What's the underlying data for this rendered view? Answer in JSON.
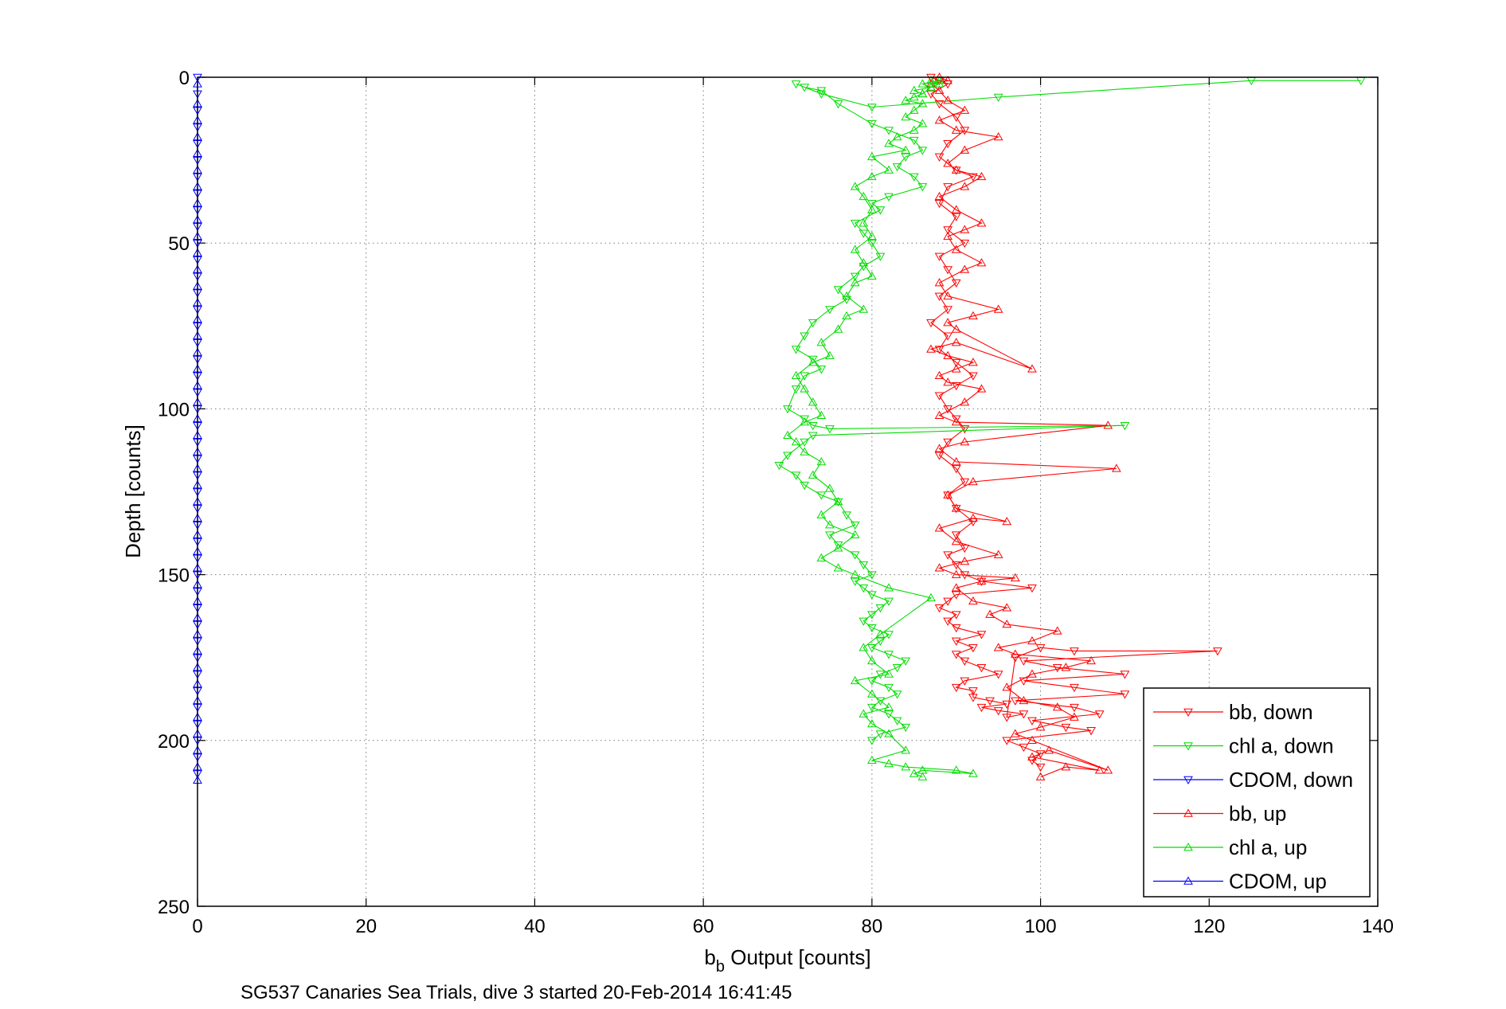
{
  "chart_data": {
    "type": "scatter",
    "title": "",
    "xlabel_main": "b",
    "xlabel_sub": "b",
    "xlabel_rest": " Output [counts]",
    "ylabel": "Depth [counts]",
    "caption": "SG537 Canaries Sea Trials, dive 3 started 20-Feb-2014 16:41:45",
    "xlim": [
      0,
      140
    ],
    "ylim": [
      0,
      250
    ],
    "y_reversed": true,
    "grid": true,
    "xticks": [
      "0",
      "20",
      "40",
      "60",
      "80",
      "100",
      "120",
      "140"
    ],
    "yticks": [
      "0",
      "50",
      "100",
      "150",
      "200",
      "250"
    ],
    "legend_position": "bottom-right",
    "colors": {
      "bb": "#ff0000",
      "chl": "#00dd00",
      "cdom": "#0000ff"
    },
    "series": [
      {
        "name": "bb, down",
        "color": "#ff0000",
        "marker": "triangle-down",
        "x": [
          87,
          88,
          89,
          87,
          88,
          90,
          91,
          89,
          88,
          90,
          92,
          89,
          88,
          90,
          89,
          91,
          88,
          89,
          90,
          88,
          89,
          87,
          89,
          88,
          90,
          92,
          90,
          88,
          89,
          90,
          91,
          89,
          88,
          90,
          91,
          89,
          90,
          92,
          90,
          91,
          89,
          90,
          91,
          93,
          99,
          90,
          89,
          88,
          90,
          89,
          90,
          93,
          90,
          92,
          90,
          91,
          93,
          95,
          91,
          90,
          92,
          92,
          94,
          96,
          93,
          95,
          98,
          96,
          97,
          100,
          104,
          121,
          98,
          102,
          110,
          98,
          104,
          110,
          97,
          104,
          107,
          99,
          103,
          106,
          96,
          98,
          100,
          99,
          100
        ],
        "y": [
          0,
          1,
          2,
          5,
          8,
          12,
          16,
          20,
          24,
          28,
          30,
          33,
          38,
          42,
          46,
          50,
          54,
          58,
          62,
          66,
          70,
          74,
          78,
          82,
          86,
          90,
          93,
          96,
          100,
          103,
          106,
          110,
          114,
          118,
          122,
          126,
          130,
          134,
          138,
          142,
          144,
          147,
          150,
          152,
          154,
          156,
          158,
          160,
          162,
          164,
          166,
          168,
          170,
          172,
          174,
          176,
          178,
          180,
          182,
          184,
          185,
          187,
          188,
          189,
          190,
          191,
          192,
          193,
          175,
          172,
          173,
          173,
          176,
          178,
          180,
          182,
          184,
          186,
          188,
          190,
          192,
          194,
          196,
          197,
          200,
          202,
          204,
          206,
          208
        ]
      },
      {
        "name": "chl a, down",
        "color": "#00dd00",
        "marker": "triangle-down",
        "x": [
          138,
          125,
          95,
          80,
          74,
          71,
          72,
          74,
          76,
          80,
          82,
          85,
          86,
          84,
          83,
          85,
          86,
          82,
          80,
          81,
          78,
          79,
          80,
          81,
          79,
          78,
          76,
          77,
          75,
          73,
          72,
          71,
          73,
          74,
          72,
          71,
          70,
          72,
          73,
          75,
          110,
          73,
          72,
          70,
          69,
          71,
          72,
          74,
          76,
          77,
          78,
          75,
          76,
          78,
          79,
          80,
          78,
          79,
          80,
          82,
          81,
          80,
          79,
          80,
          82,
          81,
          80,
          82,
          84,
          83,
          81,
          80,
          82,
          83,
          81,
          80,
          82,
          83,
          84,
          81,
          80
        ],
        "y": [
          1,
          1,
          6,
          9,
          5,
          2,
          3,
          4,
          8,
          14,
          16,
          19,
          22,
          24,
          27,
          30,
          33,
          36,
          38,
          40,
          44,
          47,
          50,
          54,
          57,
          60,
          64,
          67,
          70,
          74,
          78,
          82,
          85,
          88,
          90,
          94,
          100,
          103,
          105,
          106,
          105,
          108,
          110,
          114,
          117,
          120,
          123,
          126,
          128,
          132,
          135,
          138,
          141,
          144,
          147,
          150,
          152,
          154,
          156,
          158,
          160,
          162,
          164,
          166,
          168,
          170,
          172,
          174,
          176,
          178,
          180,
          182,
          184,
          186,
          188,
          190,
          192,
          194,
          196,
          198,
          200
        ]
      },
      {
        "name": "CDOM, down",
        "color": "#0000ff",
        "marker": "triangle-down",
        "x": [
          0,
          0,
          0,
          0,
          0,
          0,
          0,
          0,
          0,
          0,
          0,
          0,
          0,
          0,
          0,
          0,
          0,
          0,
          0,
          0,
          0,
          0,
          0,
          0,
          0,
          0,
          0,
          0,
          0,
          0,
          0,
          0,
          0,
          0,
          0,
          0,
          0,
          0,
          0,
          0,
          0,
          0,
          0
        ],
        "y": [
          0,
          5,
          10,
          15,
          20,
          25,
          30,
          35,
          40,
          45,
          50,
          55,
          60,
          65,
          70,
          75,
          80,
          85,
          90,
          95,
          100,
          105,
          110,
          115,
          120,
          125,
          130,
          135,
          140,
          145,
          150,
          155,
          160,
          165,
          170,
          175,
          180,
          185,
          190,
          195,
          200,
          205,
          210
        ]
      },
      {
        "name": "bb, up",
        "color": "#ff0000",
        "marker": "triangle-up",
        "x": [
          100,
          103,
          107,
          99,
          101,
          108,
          99,
          97,
          100,
          104,
          102,
          98,
          96,
          99,
          103,
          106,
          97,
          95,
          99,
          102,
          96,
          94,
          96,
          92,
          90,
          93,
          97,
          90,
          88,
          91,
          95,
          90,
          88,
          92,
          96,
          90,
          89,
          92,
          109,
          90,
          88,
          91,
          108,
          90,
          88,
          91,
          93,
          89,
          88,
          90,
          92,
          89,
          87,
          90,
          99,
          90,
          89,
          92,
          95,
          89,
          88,
          91,
          93,
          90,
          89,
          91,
          93,
          90,
          88,
          91,
          93,
          90,
          89,
          91,
          95,
          90,
          88,
          91,
          89,
          88,
          87,
          89,
          88
        ],
        "y": [
          211,
          208,
          209,
          205,
          203,
          209,
          200,
          198,
          196,
          193,
          190,
          188,
          184,
          180,
          178,
          176,
          174,
          172,
          170,
          167,
          165,
          162,
          160,
          158,
          154,
          152,
          151,
          150,
          148,
          146,
          144,
          140,
          136,
          133,
          134,
          130,
          126,
          122,
          118,
          116,
          112,
          110,
          105,
          104,
          102,
          98,
          94,
          92,
          90,
          88,
          86,
          84,
          82,
          80,
          88,
          76,
          74,
          72,
          70,
          66,
          62,
          58,
          56,
          52,
          48,
          46,
          44,
          40,
          36,
          33,
          30,
          28,
          26,
          22,
          18,
          16,
          13,
          10,
          7,
          4,
          2,
          1,
          0
        ]
      },
      {
        "name": "chl a, up",
        "color": "#00dd00",
        "marker": "triangle-up",
        "x": [
          86,
          85,
          86,
          92,
          90,
          84,
          82,
          80,
          84,
          82,
          80,
          79,
          82,
          80,
          78,
          82,
          80,
          79,
          81,
          87,
          82,
          78,
          76,
          74,
          76,
          78,
          75,
          74,
          76,
          75,
          73,
          74,
          72,
          71,
          70,
          72,
          74,
          73,
          72,
          71,
          73,
          75,
          74,
          76,
          77,
          79,
          77,
          78,
          80,
          79,
          78,
          80,
          79,
          80,
          79,
          78,
          80,
          82,
          80,
          84,
          82,
          83,
          85,
          86,
          84,
          85,
          86,
          84,
          85,
          86,
          85,
          87,
          86,
          88,
          86,
          87,
          88,
          87
        ],
        "y": [
          211,
          210,
          209,
          210,
          209,
          208,
          207,
          206,
          203,
          198,
          195,
          192,
          190,
          186,
          182,
          180,
          176,
          172,
          168,
          157,
          154,
          150,
          148,
          145,
          142,
          138,
          135,
          132,
          128,
          124,
          120,
          116,
          113,
          110,
          108,
          104,
          102,
          98,
          94,
          90,
          86,
          84,
          80,
          76,
          72,
          70,
          66,
          62,
          60,
          56,
          52,
          48,
          44,
          40,
          36,
          33,
          30,
          28,
          24,
          22,
          20,
          18,
          16,
          14,
          12,
          10,
          8,
          7,
          6,
          5,
          4,
          3,
          2,
          1,
          5,
          3,
          2,
          1
        ]
      },
      {
        "name": "CDOM, up",
        "color": "#0000ff",
        "marker": "triangle-up",
        "x": [
          0,
          0,
          0,
          0,
          0,
          0,
          0,
          0,
          0,
          0,
          0,
          0,
          0,
          0,
          0,
          0,
          0,
          0,
          0,
          0,
          0,
          0,
          0,
          0,
          0,
          0,
          0,
          0,
          0,
          0,
          0,
          0,
          0,
          0,
          0,
          0,
          0,
          0,
          0,
          0,
          0,
          0,
          0
        ],
        "y": [
          212,
          208,
          203,
          198,
          193,
          188,
          183,
          178,
          173,
          168,
          163,
          158,
          153,
          148,
          143,
          138,
          133,
          128,
          123,
          118,
          113,
          108,
          103,
          98,
          93,
          88,
          83,
          78,
          73,
          68,
          63,
          58,
          53,
          48,
          43,
          38,
          33,
          28,
          23,
          18,
          13,
          8,
          2
        ]
      }
    ]
  }
}
